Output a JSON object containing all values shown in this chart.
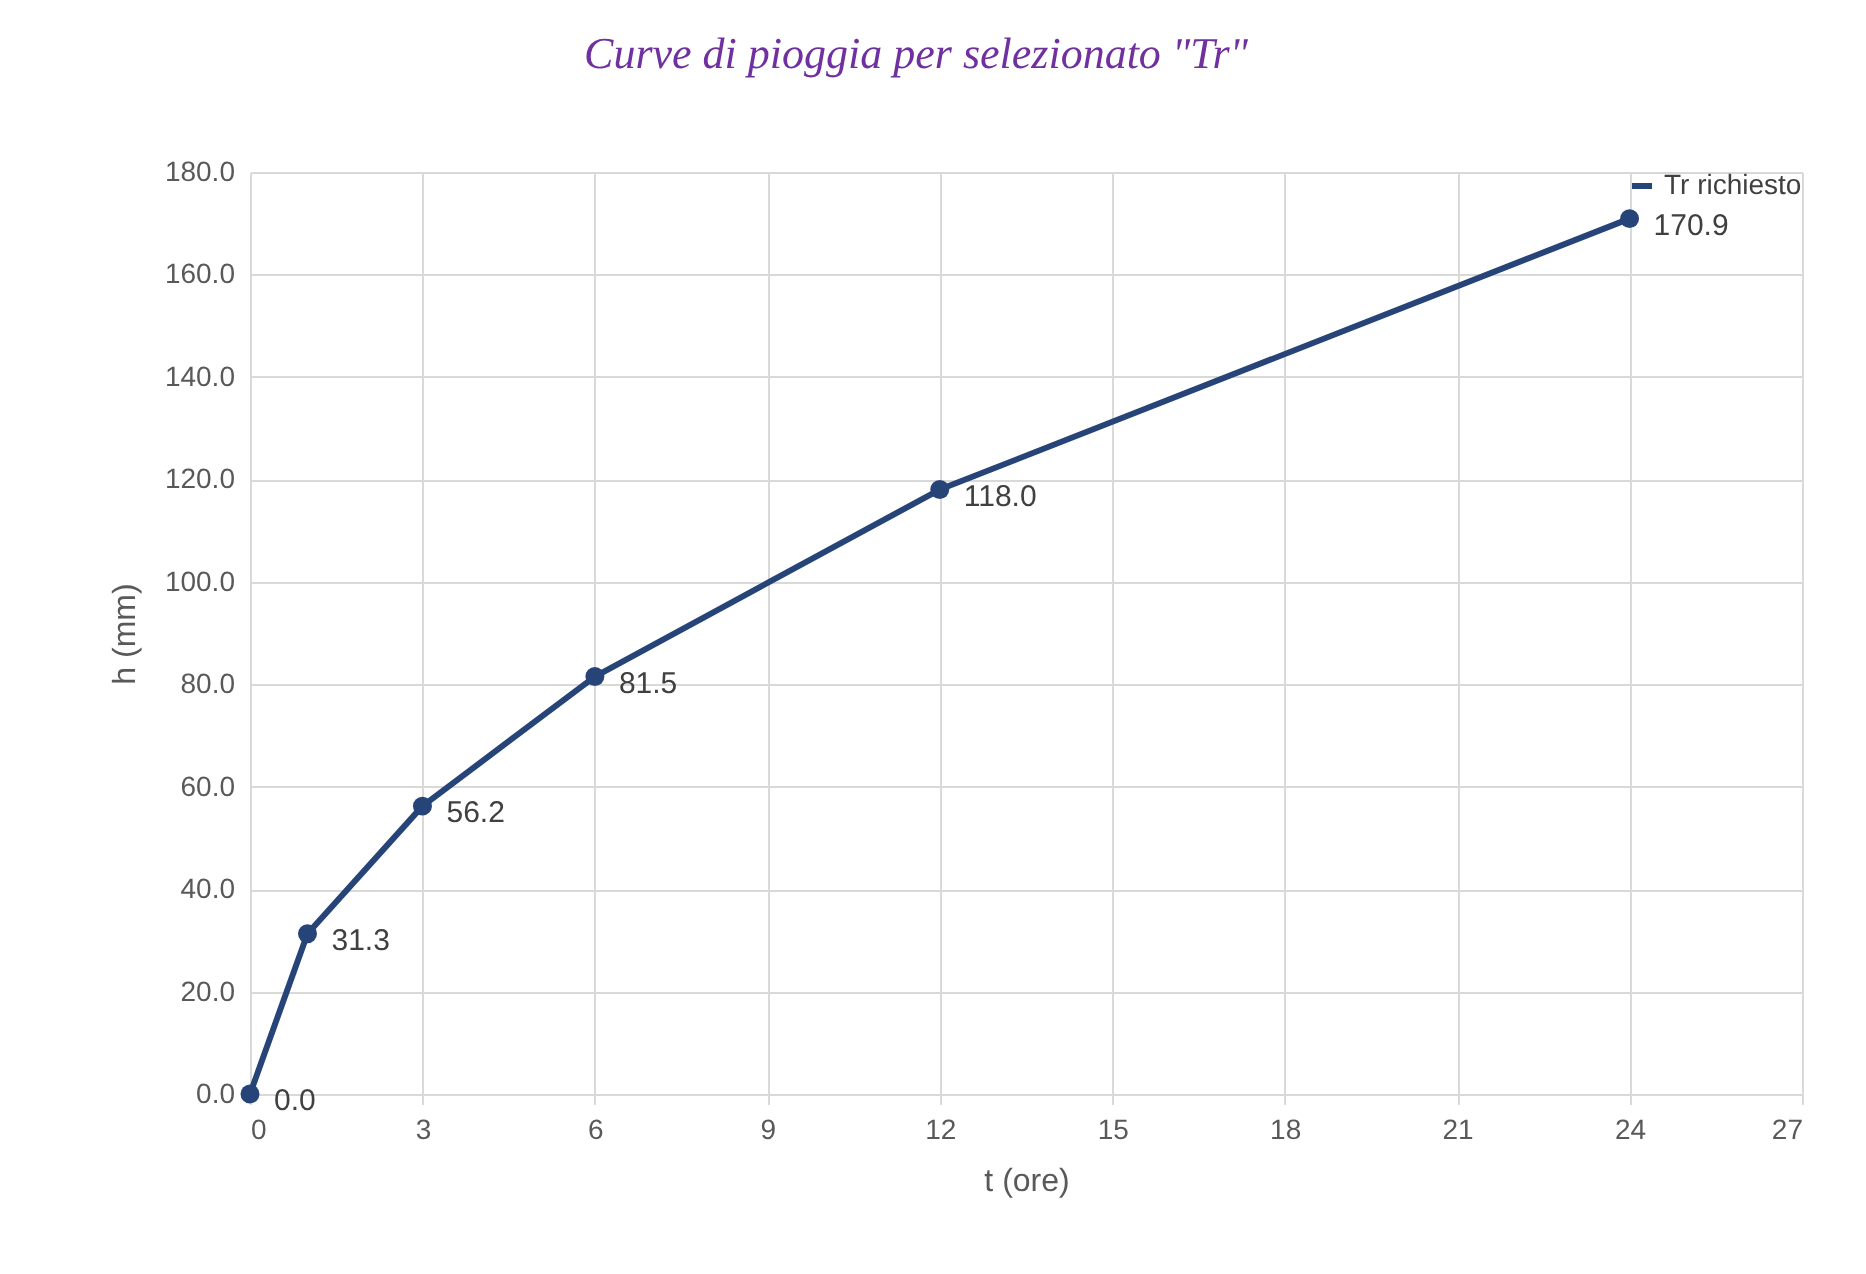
{
  "chart_data": {
    "type": "line",
    "title": "Curve di pioggia per selezionato \"Tr\"",
    "xlabel": "t (ore)",
    "ylabel": "h (mm)",
    "x": [
      0,
      1,
      3,
      6,
      12,
      24
    ],
    "series": [
      {
        "name": "Tr richiesto",
        "color": "#264478",
        "values": [
          0,
          31.3,
          56.2,
          81.5,
          118.0,
          170.9
        ],
        "value_labels": [
          "0.0",
          "31.3",
          "56.2",
          "81.5",
          "118.0",
          "170.9"
        ]
      }
    ],
    "xlim": [
      0,
      27
    ],
    "xticks": [
      0,
      3,
      6,
      9,
      12,
      15,
      18,
      21,
      24,
      27
    ],
    "ylim": [
      0,
      180
    ],
    "yticks": [
      {
        "value": 0,
        "label": "0.0"
      },
      {
        "value": 20,
        "label": "20.0"
      },
      {
        "value": 40,
        "label": "40.0"
      },
      {
        "value": 60,
        "label": "60.0"
      },
      {
        "value": 80,
        "label": "80.0"
      },
      {
        "value": 100,
        "label": "100.0"
      },
      {
        "value": 120,
        "label": "120.0"
      },
      {
        "value": 140,
        "label": "140.0"
      },
      {
        "value": 160,
        "label": "160.0"
      },
      {
        "value": 180,
        "label": "180.0"
      }
    ],
    "grid": true,
    "legend": "top right",
    "marker": "circle",
    "line_style": "solid"
  }
}
